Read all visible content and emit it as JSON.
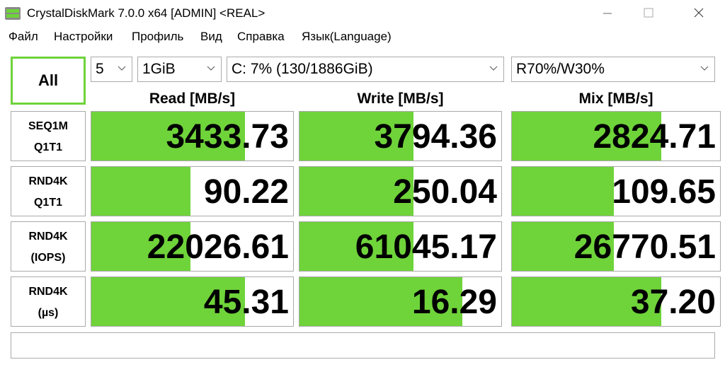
{
  "window": {
    "title": "CrystalDiskMark 7.0.0 x64 [ADMIN] <REAL>"
  },
  "menu": [
    "Файл",
    "Настройки",
    "Профиль",
    "Вид",
    "Справка",
    "Язык(Language)"
  ],
  "controls": {
    "all_button": "All",
    "count": "5",
    "size": "1GiB",
    "drive": "C: 7% (130/1886GiB)",
    "mix": "R70%/W30%"
  },
  "headers": [
    "Read [MB/s]",
    "Write [MB/s]",
    "Mix [MB/s]"
  ],
  "rows": [
    {
      "label": [
        "SEQ1M",
        "Q1T1"
      ],
      "values": [
        "3433.73",
        "3794.36",
        "2824.71"
      ]
    },
    {
      "label": [
        "RND4K",
        "Q1T1"
      ],
      "values": [
        "90.22",
        "250.04",
        "109.65"
      ]
    },
    {
      "label": [
        "RND4K",
        "(IOPS)"
      ],
      "values": [
        "22026.61",
        "61045.17",
        "26770.51"
      ]
    },
    {
      "label": [
        "RND4K",
        "(µs)"
      ],
      "values": [
        "45.31",
        "16.29",
        "37.20"
      ]
    }
  ]
}
